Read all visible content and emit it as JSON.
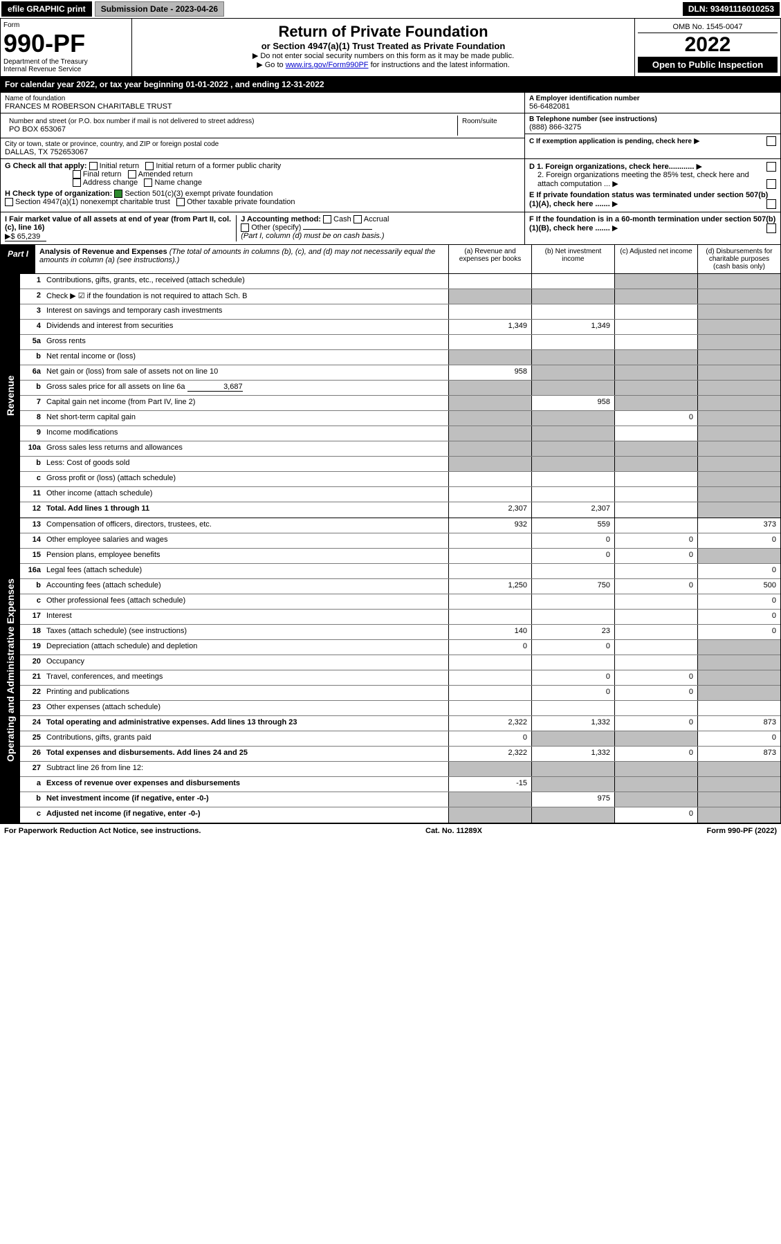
{
  "topbar": {
    "efile": "efile GRAPHIC print",
    "submission": "Submission Date - 2023-04-26",
    "dln": "DLN: 93491116010253"
  },
  "header": {
    "form_word": "Form",
    "form_num": "990-PF",
    "dept": "Department of the Treasury",
    "irs": "Internal Revenue Service",
    "title": "Return of Private Foundation",
    "subtitle": "or Section 4947(a)(1) Trust Treated as Private Foundation",
    "instr1": "▶ Do not enter social security numbers on this form as it may be made public.",
    "instr2a": "▶ Go to ",
    "instr2b": "www.irs.gov/Form990PF",
    "instr2c": " for instructions and the latest information.",
    "omb": "OMB No. 1545-0047",
    "year": "2022",
    "otp": "Open to Public Inspection"
  },
  "cal": "For calendar year 2022, or tax year beginning 01-01-2022             , and ending 12-31-2022",
  "info": {
    "name_lbl": "Name of foundation",
    "name": "FRANCES M ROBERSON CHARITABLE TRUST",
    "addr_lbl": "Number and street (or P.O. box number if mail is not delivered to street address)",
    "addr": "PO BOX 653067",
    "room_lbl": "Room/suite",
    "city_lbl": "City or town, state or province, country, and ZIP or foreign postal code",
    "city": "DALLAS, TX  752653067",
    "a_lbl": "A Employer identification number",
    "a_val": "56-6482081",
    "b_lbl": "B Telephone number (see instructions)",
    "b_val": "(888) 866-3275",
    "c_lbl": "C If exemption application is pending, check here"
  },
  "checks": {
    "g_lbl": "G Check all that apply:",
    "g1": "Initial return",
    "g2": "Initial return of a former public charity",
    "g3": "Final return",
    "g4": "Amended return",
    "g5": "Address change",
    "g6": "Name change",
    "h_lbl": "H Check type of organization:",
    "h1": "Section 501(c)(3) exempt private foundation",
    "h2": "Section 4947(a)(1) nonexempt charitable trust",
    "h3": "Other taxable private foundation",
    "i_lbl": "I Fair market value of all assets at end of year (from Part II, col. (c), line 16)",
    "i_val": "▶$ 65,239",
    "j_lbl": "J Accounting method:",
    "j1": "Cash",
    "j2": "Accrual",
    "j3": "Other (specify)",
    "j_note": "(Part I, column (d) must be on cash basis.)",
    "d1": "D 1. Foreign organizations, check here............",
    "d2": "2. Foreign organizations meeting the 85% test, check here and attach computation ...",
    "e": "E  If private foundation status was terminated under section 507(b)(1)(A), check here .......",
    "f": "F  If the foundation is in a 60-month termination under section 507(b)(1)(B), check here ......."
  },
  "part1": {
    "label": "Part I",
    "title": "Analysis of Revenue and Expenses",
    "note": " (The total of amounts in columns (b), (c), and (d) may not necessarily equal the amounts in column (a) (see instructions).)",
    "col_a": "(a)   Revenue and expenses per books",
    "col_b": "(b)   Net investment income",
    "col_c": "(c)   Adjusted net income",
    "col_d": "(d)   Disbursements for charitable purposes (cash basis only)"
  },
  "rev_label": "Revenue",
  "exp_label": "Operating and Administrative Expenses",
  "rows": {
    "r1": {
      "n": "1",
      "d": "Contributions, gifts, grants, etc., received (attach schedule)"
    },
    "r2": {
      "n": "2",
      "d": "Check ▶ ☑ if the foundation is not required to attach Sch. B"
    },
    "r3": {
      "n": "3",
      "d": "Interest on savings and temporary cash investments"
    },
    "r4": {
      "n": "4",
      "d": "Dividends and interest from securities",
      "a": "1,349",
      "b": "1,349"
    },
    "r5a": {
      "n": "5a",
      "d": "Gross rents"
    },
    "r5b": {
      "n": "b",
      "d": "Net rental income or (loss)"
    },
    "r6a": {
      "n": "6a",
      "d": "Net gain or (loss) from sale of assets not on line 10",
      "a": "958"
    },
    "r6b": {
      "n": "b",
      "d": "Gross sales price for all assets on line 6a",
      "inline": "3,687"
    },
    "r7": {
      "n": "7",
      "d": "Capital gain net income (from Part IV, line 2)",
      "b": "958"
    },
    "r8": {
      "n": "8",
      "d": "Net short-term capital gain",
      "c": "0"
    },
    "r9": {
      "n": "9",
      "d": "Income modifications"
    },
    "r10a": {
      "n": "10a",
      "d": "Gross sales less returns and allowances"
    },
    "r10b": {
      "n": "b",
      "d": "Less: Cost of goods sold"
    },
    "r10c": {
      "n": "c",
      "d": "Gross profit or (loss) (attach schedule)"
    },
    "r11": {
      "n": "11",
      "d": "Other income (attach schedule)"
    },
    "r12": {
      "n": "12",
      "d": "Total. Add lines 1 through 11",
      "a": "2,307",
      "b": "2,307"
    },
    "r13": {
      "n": "13",
      "d": "Compensation of officers, directors, trustees, etc.",
      "a": "932",
      "b": "559",
      "d4": "373"
    },
    "r14": {
      "n": "14",
      "d": "Other employee salaries and wages",
      "b": "0",
      "c": "0",
      "d4": "0"
    },
    "r15": {
      "n": "15",
      "d": "Pension plans, employee benefits",
      "b": "0",
      "c": "0"
    },
    "r16a": {
      "n": "16a",
      "d": "Legal fees (attach schedule)",
      "d4": "0"
    },
    "r16b": {
      "n": "b",
      "d": "Accounting fees (attach schedule)",
      "a": "1,250",
      "b": "750",
      "c": "0",
      "d4": "500"
    },
    "r16c": {
      "n": "c",
      "d": "Other professional fees (attach schedule)",
      "d4": "0"
    },
    "r17": {
      "n": "17",
      "d": "Interest",
      "d4": "0"
    },
    "r18": {
      "n": "18",
      "d": "Taxes (attach schedule) (see instructions)",
      "a": "140",
      "b": "23",
      "d4": "0"
    },
    "r19": {
      "n": "19",
      "d": "Depreciation (attach schedule) and depletion",
      "a": "0",
      "b": "0"
    },
    "r20": {
      "n": "20",
      "d": "Occupancy"
    },
    "r21": {
      "n": "21",
      "d": "Travel, conferences, and meetings",
      "b": "0",
      "c": "0"
    },
    "r22": {
      "n": "22",
      "d": "Printing and publications",
      "b": "0",
      "c": "0"
    },
    "r23": {
      "n": "23",
      "d": "Other expenses (attach schedule)"
    },
    "r24": {
      "n": "24",
      "d": "Total operating and administrative expenses. Add lines 13 through 23",
      "a": "2,322",
      "b": "1,332",
      "c": "0",
      "d4": "873"
    },
    "r25": {
      "n": "25",
      "d": "Contributions, gifts, grants paid",
      "a": "0",
      "d4": "0"
    },
    "r26": {
      "n": "26",
      "d": "Total expenses and disbursements. Add lines 24 and 25",
      "a": "2,322",
      "b": "1,332",
      "c": "0",
      "d4": "873"
    },
    "r27": {
      "n": "27",
      "d": "Subtract line 26 from line 12:"
    },
    "r27a": {
      "n": "a",
      "d": "Excess of revenue over expenses and disbursements",
      "a": "-15"
    },
    "r27b": {
      "n": "b",
      "d": "Net investment income (if negative, enter -0-)",
      "b": "975"
    },
    "r27c": {
      "n": "c",
      "d": "Adjusted net income (if negative, enter -0-)",
      "c": "0"
    }
  },
  "footer": {
    "left": "For Paperwork Reduction Act Notice, see instructions.",
    "mid": "Cat. No. 11289X",
    "right": "Form 990-PF (2022)"
  }
}
